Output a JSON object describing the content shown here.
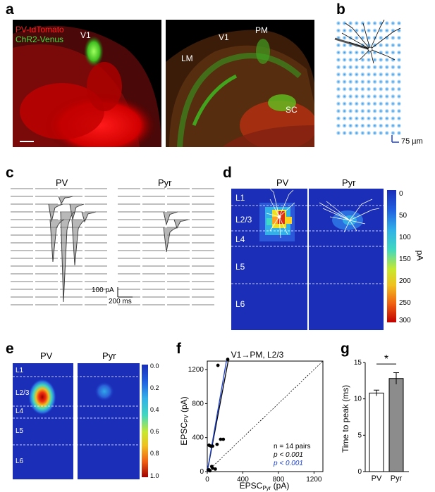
{
  "panels": {
    "a": "a",
    "b": "b",
    "c": "c",
    "d": "d",
    "e": "e",
    "f": "f",
    "g": "g"
  },
  "panel_a": {
    "legend_red": "PV-tdTomato",
    "legend_green": "ChR2-Venus",
    "left_labels": {
      "v1": "V1"
    },
    "right_labels": {
      "lm": "LM",
      "v1": "V1",
      "pm": "PM",
      "sc": "SC"
    }
  },
  "panel_b": {
    "scale": "75 µm"
  },
  "panel_c": {
    "pv": "PV",
    "pyr": "Pyr",
    "scale_y": "100 pA",
    "scale_x": "200 ms"
  },
  "panel_d": {
    "pv": "PV",
    "pyr": "Pyr",
    "layers": [
      "L1",
      "L2/3",
      "L4",
      "L5",
      "L6"
    ],
    "colorbar_ticks": [
      "0",
      "50",
      "100",
      "150",
      "200",
      "250",
      "300"
    ],
    "colorbar_unit": "pA"
  },
  "panel_e": {
    "pv": "PV",
    "pyr": "Pyr",
    "layers": [
      "L1",
      "L2/3",
      "L4",
      "L5",
      "L6"
    ],
    "colorbar_ticks": [
      "0.0",
      "0.2",
      "0.4",
      "0.6",
      "0.8",
      "1.0"
    ]
  },
  "panel_f": {
    "title": "V1→PM, L2/3",
    "ylabel_main": "EPSC",
    "ylabel_sub": "PV",
    "ylabel_unit": " (pA)",
    "xlabel_main": "EPSC",
    "xlabel_sub": "Pyr",
    "xlabel_unit": " (pA)",
    "x_ticks": [
      "0",
      "400",
      "800",
      "1200"
    ],
    "y_ticks": [
      "0",
      "400",
      "800",
      "1200"
    ],
    "stat_n": "n = 14 pairs",
    "stat_p1": "p < 0.001",
    "stat_p2": "p < 0.001",
    "blue_color": "#1a3fcf"
  },
  "chart_data": [
    {
      "type": "scatter",
      "title": "V1→PM, L2/3",
      "xlabel": "EPSCPyr (pA)",
      "ylabel": "EPSCPV (pA)",
      "xlim": [
        0,
        1300
      ],
      "ylim": [
        0,
        1300
      ],
      "series": [
        {
          "values": [
            {
              "x": 20,
              "y": 20
            },
            {
              "x": 50,
              "y": 60
            },
            {
              "x": 60,
              "y": 40
            },
            {
              "x": 40,
              "y": 300
            },
            {
              "x": 20,
              "y": 310
            },
            {
              "x": 110,
              "y": 320
            },
            {
              "x": 150,
              "y": 380
            },
            {
              "x": 180,
              "y": 380
            },
            {
              "x": 120,
              "y": 1250
            },
            {
              "x": 230,
              "y": 1320
            },
            {
              "x": 90,
              "y": 30
            },
            {
              "x": 30,
              "y": 10
            },
            {
              "x": 10,
              "y": 20
            },
            {
              "x": 60,
              "y": 300
            }
          ]
        }
      ],
      "reference_line": "unity"
    },
    {
      "type": "bar",
      "categories": [
        "PV",
        "Pyr"
      ],
      "values": [
        10.8,
        12.8
      ],
      "errors": [
        0.4,
        0.8
      ],
      "ylabel": "Time to peak (ms)",
      "ylim": [
        0,
        15
      ],
      "y_ticks": [
        "0",
        "5",
        "10",
        "15"
      ],
      "significance": "*",
      "colors": [
        "#ffffff",
        "#8c8c8c"
      ]
    }
  ]
}
